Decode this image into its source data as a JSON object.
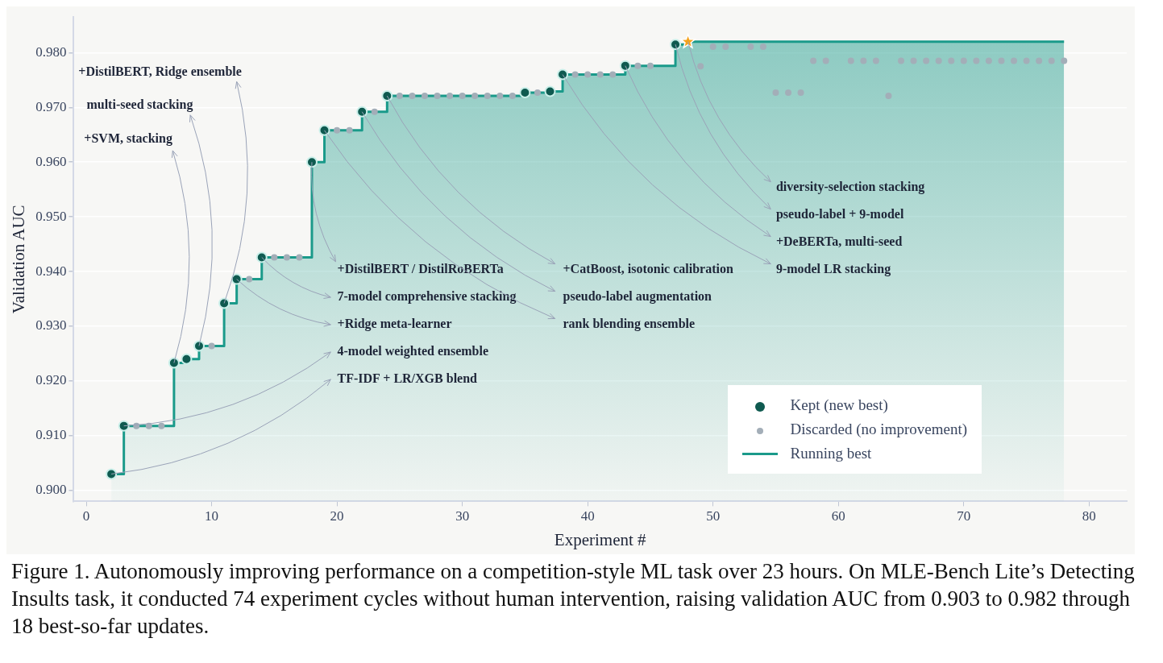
{
  "chart_data": {
    "type": "scatter",
    "xlabel": "Experiment #",
    "ylabel": "Validation AUC",
    "xlim": [
      -1,
      83
    ],
    "xticks": [
      0,
      10,
      20,
      30,
      40,
      50,
      60,
      70,
      80
    ],
    "ylim": [
      0.898,
      0.9865
    ],
    "yticks": [
      {
        "value": 0.9,
        "label": "0.900"
      },
      {
        "value": 0.91,
        "label": "0.910"
      },
      {
        "value": 0.92,
        "label": "0.920"
      },
      {
        "value": 0.93,
        "label": "0.930"
      },
      {
        "value": 0.94,
        "label": "0.940"
      },
      {
        "value": 0.95,
        "label": "0.950"
      },
      {
        "value": 0.96,
        "label": "0.960"
      },
      {
        "value": 0.97,
        "label": "0.970"
      },
      {
        "value": 0.98,
        "label": "0.980"
      }
    ],
    "grid": "y",
    "legend": "bottom right",
    "marker": "circle",
    "series": [
      {
        "name": "Running best",
        "type": "area",
        "color": "#1a9a8a",
        "marker": "none",
        "x": [
          2,
          3,
          3,
          7,
          7,
          8,
          8,
          9,
          9,
          11,
          11,
          12,
          12,
          14,
          14,
          18,
          18,
          19,
          19,
          22,
          22,
          24,
          24,
          35,
          35,
          37,
          37,
          38,
          38,
          43,
          43,
          47,
          47,
          48,
          48,
          78
        ],
        "values": [
          0.903,
          0.903,
          0.9118,
          0.9118,
          0.9233,
          0.9233,
          0.924,
          0.924,
          0.9264,
          0.9264,
          0.9342,
          0.9342,
          0.9386,
          0.9386,
          0.9426,
          0.9426,
          0.96,
          0.96,
          0.9658,
          0.9658,
          0.9692,
          0.9692,
          0.9721,
          0.9721,
          0.9727,
          0.9727,
          0.9729,
          0.9729,
          0.976,
          0.976,
          0.9776,
          0.9776,
          0.9815,
          0.9815,
          0.982,
          0.982
        ]
      },
      {
        "name": "Discarded (no improvement)",
        "color": "#a3aeb8",
        "x": [
          4,
          5,
          6,
          10,
          13,
          15,
          16,
          17,
          20,
          21,
          23,
          25,
          26,
          27,
          28,
          29,
          30,
          31,
          32,
          33,
          34,
          36,
          39,
          40,
          41,
          42,
          44,
          45,
          49,
          50,
          51,
          53,
          54,
          55,
          56,
          57,
          58,
          59,
          61,
          62,
          63,
          64,
          65,
          66,
          67,
          68,
          69,
          70,
          71,
          72,
          73,
          74,
          75,
          76,
          77,
          78
        ],
        "values": [
          0.9118,
          0.9118,
          0.9118,
          0.9264,
          0.9386,
          0.9426,
          0.9426,
          0.9426,
          0.9658,
          0.9658,
          0.9692,
          0.9721,
          0.9721,
          0.9721,
          0.9721,
          0.9721,
          0.9721,
          0.9721,
          0.9721,
          0.9721,
          0.9721,
          0.9727,
          0.976,
          0.976,
          0.976,
          0.976,
          0.9776,
          0.9776,
          0.9775,
          0.9811,
          0.9811,
          0.9811,
          0.9811,
          0.9727,
          0.9727,
          0.9727,
          0.9785,
          0.9785,
          0.9785,
          0.9785,
          0.9785,
          0.9721,
          0.9785,
          0.9785,
          0.9785,
          0.9785,
          0.9785,
          0.9785,
          0.9785,
          0.9785,
          0.9785,
          0.9785,
          0.9785,
          0.9785,
          0.9785,
          0.9785
        ]
      },
      {
        "name": "Kept (new best)",
        "color": "#0f5a50",
        "x": [
          2,
          3,
          7,
          8,
          9,
          11,
          12,
          14,
          18,
          19,
          22,
          24,
          35,
          37,
          38,
          43,
          47
        ],
        "values": [
          0.903,
          0.9118,
          0.9233,
          0.924,
          0.9264,
          0.9342,
          0.9386,
          0.9426,
          0.96,
          0.9658,
          0.9692,
          0.9721,
          0.9727,
          0.9729,
          0.976,
          0.9776,
          0.9815
        ]
      },
      {
        "color": "#f5a21b",
        "marker": "star",
        "x": [
          48
        ],
        "values": [
          0.982
        ]
      }
    ],
    "annotations": [
      {
        "text": "TF-IDF + LR/XGB blend",
        "x": 2,
        "y": 0.903
      },
      {
        "text": "4-model weighted ensemble",
        "x": 3,
        "y": 0.9118
      },
      {
        "text": "+Ridge meta-learner",
        "x": 12,
        "y": 0.9386
      },
      {
        "text": "7-model comprehensive stacking",
        "x": 14,
        "y": 0.9426
      },
      {
        "text": "+DistilBERT / DistilRoBERTa",
        "x": 18,
        "y": 0.96
      },
      {
        "text": "+SVM, stacking",
        "x": 7,
        "y": 0.9233
      },
      {
        "text": "multi-seed stacking",
        "x": 9,
        "y": 0.9264
      },
      {
        "text": "+DistilBERT, Ridge ensemble",
        "x": 11,
        "y": 0.9342
      },
      {
        "text": "rank blending ensemble",
        "x": 19,
        "y": 0.9658
      },
      {
        "text": "pseudo-label augmentation",
        "x": 22,
        "y": 0.9692
      },
      {
        "text": "+CatBoost, isotonic calibration",
        "x": 24,
        "y": 0.9721
      },
      {
        "text": "9-model LR stacking",
        "x": 38,
        "y": 0.976
      },
      {
        "text": "+DeBERTa, multi-seed",
        "x": 43,
        "y": 0.9776
      },
      {
        "text": "pseudo-label + 9-model",
        "x": 47,
        "y": 0.9815
      },
      {
        "text": "diversity-selection stacking",
        "x": 48,
        "y": 0.982
      },
      "Figure 1. Autonomously improving performance on a competition-style ML task over 23 hours. On MLE-Bench Lite’s Detecting Insults task, it conducted 74 experiment cycles without human intervention, raising validation AUC from 0.903 to 0.982 through 18 best-so-far updates."
    ]
  }
}
